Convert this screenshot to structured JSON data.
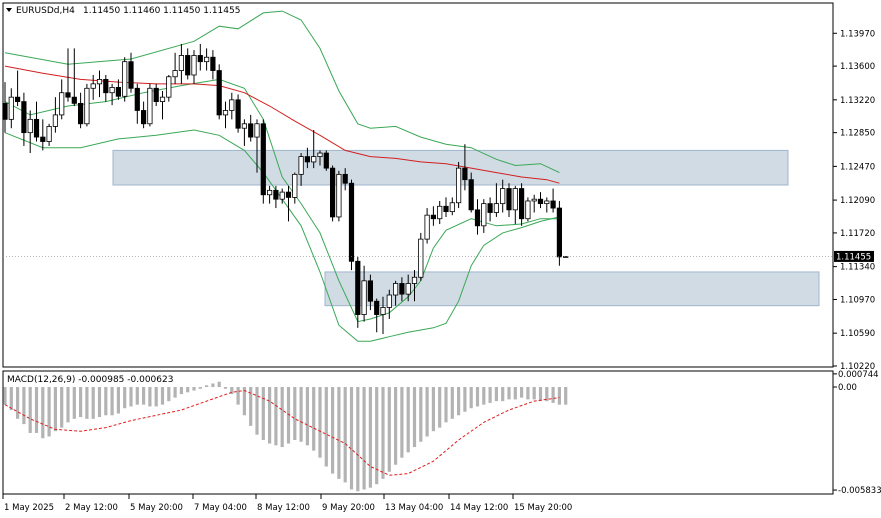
{
  "header": {
    "symbol": "EURUSDd,H4",
    "ohlc": "1.11450 1.11460 1.11450 1.11455"
  },
  "macd_header": {
    "label": "MACD(12,26,9) -0.000985 -0.000623"
  },
  "colors": {
    "bull_candle": "#ffffff",
    "bear_candle": "#000000",
    "bollinger": "#3aa856",
    "moving_average": "#d21f1f",
    "macd_histogram": "#b3b3b3",
    "macd_signal": "#e01e1e",
    "zone_fill": "#c9d5df",
    "zone_border": "#9fb6cc"
  },
  "chart_data": [
    {
      "type": "candlestick",
      "symbol": "EURUSDd",
      "timeframe": "H4",
      "ylim": [
        1.1022,
        1.143
      ],
      "y_ticks": [
        "1.13970",
        "1.13600",
        "1.13220",
        "1.12850",
        "1.12470",
        "1.12090",
        "1.11720",
        "1.11340",
        "1.10970",
        "1.10590",
        "1.10220"
      ],
      "current_price": "1.11455",
      "x_ticks": [
        "1 May 2025",
        "2 May 12:00",
        "5 May 20:00",
        "7 May 04:00",
        "8 May 12:00",
        "9 May 20:00",
        "13 May 04:00",
        "14 May 12:00",
        "15 May 20:00"
      ],
      "candles": [
        {
          "o": 1.1318,
          "h": 1.1342,
          "l": 1.1285,
          "c": 1.13
        },
        {
          "o": 1.13,
          "h": 1.1335,
          "l": 1.129,
          "c": 1.1325
        },
        {
          "o": 1.1325,
          "h": 1.1355,
          "l": 1.1315,
          "c": 1.132
        },
        {
          "o": 1.132,
          "h": 1.133,
          "l": 1.127,
          "c": 1.1285
        },
        {
          "o": 1.1285,
          "h": 1.131,
          "l": 1.1262,
          "c": 1.13
        },
        {
          "o": 1.13,
          "h": 1.132,
          "l": 1.1275,
          "c": 1.128
        },
        {
          "o": 1.128,
          "h": 1.13,
          "l": 1.1265,
          "c": 1.1275
        },
        {
          "o": 1.1275,
          "h": 1.1295,
          "l": 1.127,
          "c": 1.1292
        },
        {
          "o": 1.1292,
          "h": 1.1325,
          "l": 1.1285,
          "c": 1.1305
        },
        {
          "o": 1.1305,
          "h": 1.1345,
          "l": 1.13,
          "c": 1.133
        },
        {
          "o": 1.133,
          "h": 1.138,
          "l": 1.132,
          "c": 1.1325
        },
        {
          "o": 1.1325,
          "h": 1.138,
          "l": 1.1315,
          "c": 1.1318
        },
        {
          "o": 1.1318,
          "h": 1.133,
          "l": 1.129,
          "c": 1.1295
        },
        {
          "o": 1.1295,
          "h": 1.134,
          "l": 1.1292,
          "c": 1.1335
        },
        {
          "o": 1.1335,
          "h": 1.135,
          "l": 1.1322,
          "c": 1.134
        },
        {
          "o": 1.134,
          "h": 1.1355,
          "l": 1.1325,
          "c": 1.1345
        },
        {
          "o": 1.1345,
          "h": 1.135,
          "l": 1.132,
          "c": 1.133
        },
        {
          "o": 1.133,
          "h": 1.134,
          "l": 1.1316,
          "c": 1.1336
        },
        {
          "o": 1.1336,
          "h": 1.1345,
          "l": 1.1322,
          "c": 1.1326
        },
        {
          "o": 1.1326,
          "h": 1.137,
          "l": 1.132,
          "c": 1.1365
        },
        {
          "o": 1.1365,
          "h": 1.1375,
          "l": 1.133,
          "c": 1.1335
        },
        {
          "o": 1.1335,
          "h": 1.134,
          "l": 1.1295,
          "c": 1.131
        },
        {
          "o": 1.131,
          "h": 1.132,
          "l": 1.129,
          "c": 1.1295
        },
        {
          "o": 1.1295,
          "h": 1.134,
          "l": 1.1292,
          "c": 1.1335
        },
        {
          "o": 1.1335,
          "h": 1.134,
          "l": 1.1315,
          "c": 1.132
        },
        {
          "o": 1.132,
          "h": 1.1332,
          "l": 1.13,
          "c": 1.1325
        },
        {
          "o": 1.1325,
          "h": 1.135,
          "l": 1.132,
          "c": 1.1348
        },
        {
          "o": 1.1348,
          "h": 1.1375,
          "l": 1.134,
          "c": 1.1355
        },
        {
          "o": 1.1355,
          "h": 1.1385,
          "l": 1.134,
          "c": 1.1372
        },
        {
          "o": 1.1372,
          "h": 1.138,
          "l": 1.1345,
          "c": 1.135
        },
        {
          "o": 1.135,
          "h": 1.1378,
          "l": 1.134,
          "c": 1.1372
        },
        {
          "o": 1.1372,
          "h": 1.1385,
          "l": 1.1355,
          "c": 1.1365
        },
        {
          "o": 1.1365,
          "h": 1.138,
          "l": 1.1355,
          "c": 1.137
        },
        {
          "o": 1.137,
          "h": 1.1378,
          "l": 1.1345,
          "c": 1.1355
        },
        {
          "o": 1.1355,
          "h": 1.1362,
          "l": 1.13,
          "c": 1.1305
        },
        {
          "o": 1.1305,
          "h": 1.132,
          "l": 1.129,
          "c": 1.131
        },
        {
          "o": 1.131,
          "h": 1.133,
          "l": 1.13,
          "c": 1.1322
        },
        {
          "o": 1.1322,
          "h": 1.1328,
          "l": 1.1285,
          "c": 1.129
        },
        {
          "o": 1.129,
          "h": 1.13,
          "l": 1.127,
          "c": 1.1295
        },
        {
          "o": 1.1295,
          "h": 1.1305,
          "l": 1.1275,
          "c": 1.128
        },
        {
          "o": 1.128,
          "h": 1.13,
          "l": 1.124,
          "c": 1.1295
        },
        {
          "o": 1.1295,
          "h": 1.13,
          "l": 1.1205,
          "c": 1.1215
        },
        {
          "o": 1.1215,
          "h": 1.1225,
          "l": 1.1205,
          "c": 1.122
        },
        {
          "o": 1.122,
          "h": 1.1225,
          "l": 1.12,
          "c": 1.121
        },
        {
          "o": 1.121,
          "h": 1.1222,
          "l": 1.1205,
          "c": 1.1218
        },
        {
          "o": 1.1218,
          "h": 1.1225,
          "l": 1.1185,
          "c": 1.1212
        },
        {
          "o": 1.1212,
          "h": 1.124,
          "l": 1.1205,
          "c": 1.1238
        },
        {
          "o": 1.1238,
          "h": 1.1262,
          "l": 1.1225,
          "c": 1.1258
        },
        {
          "o": 1.1258,
          "h": 1.1268,
          "l": 1.1245,
          "c": 1.1252
        },
        {
          "o": 1.1252,
          "h": 1.1288,
          "l": 1.1245,
          "c": 1.1258
        },
        {
          "o": 1.1258,
          "h": 1.1265,
          "l": 1.1248,
          "c": 1.1262
        },
        {
          "o": 1.1262,
          "h": 1.1265,
          "l": 1.1242,
          "c": 1.1245
        },
        {
          "o": 1.1245,
          "h": 1.1248,
          "l": 1.1185,
          "c": 1.119
        },
        {
          "o": 1.119,
          "h": 1.1242,
          "l": 1.1185,
          "c": 1.1238
        },
        {
          "o": 1.1238,
          "h": 1.1245,
          "l": 1.122,
          "c": 1.1228
        },
        {
          "o": 1.1228,
          "h": 1.1232,
          "l": 1.113,
          "c": 1.114
        },
        {
          "o": 1.114,
          "h": 1.1145,
          "l": 1.1065,
          "c": 1.108
        },
        {
          "o": 1.108,
          "h": 1.1135,
          "l": 1.1072,
          "c": 1.1118
        },
        {
          "o": 1.1118,
          "h": 1.1125,
          "l": 1.1085,
          "c": 1.1095
        },
        {
          "o": 1.1095,
          "h": 1.1098,
          "l": 1.106,
          "c": 1.108
        },
        {
          "o": 1.108,
          "h": 1.11,
          "l": 1.1058,
          "c": 1.1088
        },
        {
          "o": 1.1088,
          "h": 1.1108,
          "l": 1.1075,
          "c": 1.1102
        },
        {
          "o": 1.1102,
          "h": 1.1118,
          "l": 1.109,
          "c": 1.1115
        },
        {
          "o": 1.1115,
          "h": 1.1122,
          "l": 1.1095,
          "c": 1.1103
        },
        {
          "o": 1.1103,
          "h": 1.1125,
          "l": 1.1095,
          "c": 1.1115
        },
        {
          "o": 1.1115,
          "h": 1.113,
          "l": 1.1095,
          "c": 1.1122
        },
        {
          "o": 1.1122,
          "h": 1.1172,
          "l": 1.1118,
          "c": 1.1165
        },
        {
          "o": 1.1165,
          "h": 1.12,
          "l": 1.116,
          "c": 1.1192
        },
        {
          "o": 1.1192,
          "h": 1.1202,
          "l": 1.118,
          "c": 1.1188
        },
        {
          "o": 1.1188,
          "h": 1.1208,
          "l": 1.1182,
          "c": 1.1202
        },
        {
          "o": 1.1202,
          "h": 1.1212,
          "l": 1.119,
          "c": 1.1196
        },
        {
          "o": 1.1196,
          "h": 1.1212,
          "l": 1.1192,
          "c": 1.1206
        },
        {
          "o": 1.1206,
          "h": 1.1252,
          "l": 1.12,
          "c": 1.1245
        },
        {
          "o": 1.1245,
          "h": 1.1272,
          "l": 1.122,
          "c": 1.1232
        },
        {
          "o": 1.1232,
          "h": 1.124,
          "l": 1.1195,
          "c": 1.1198
        },
        {
          "o": 1.1198,
          "h": 1.121,
          "l": 1.117,
          "c": 1.118
        },
        {
          "o": 1.118,
          "h": 1.121,
          "l": 1.1172,
          "c": 1.1205
        },
        {
          "o": 1.1205,
          "h": 1.1212,
          "l": 1.1185,
          "c": 1.1195
        },
        {
          "o": 1.1195,
          "h": 1.1228,
          "l": 1.119,
          "c": 1.1205
        },
        {
          "o": 1.1205,
          "h": 1.1232,
          "l": 1.1195,
          "c": 1.1222
        },
        {
          "o": 1.1222,
          "h": 1.1228,
          "l": 1.119,
          "c": 1.1198
        },
        {
          "o": 1.1198,
          "h": 1.1225,
          "l": 1.1182,
          "c": 1.1222
        },
        {
          "o": 1.1222,
          "h": 1.1228,
          "l": 1.118,
          "c": 1.1188
        },
        {
          "o": 1.1188,
          "h": 1.1212,
          "l": 1.1185,
          "c": 1.1208
        },
        {
          "o": 1.1208,
          "h": 1.1215,
          "l": 1.1195,
          "c": 1.121
        },
        {
          "o": 1.121,
          "h": 1.1218,
          "l": 1.12,
          "c": 1.1205
        },
        {
          "o": 1.1205,
          "h": 1.1212,
          "l": 1.1195,
          "c": 1.1208
        },
        {
          "o": 1.1208,
          "h": 1.1222,
          "l": 1.1195,
          "c": 1.12
        },
        {
          "o": 1.12,
          "h": 1.1208,
          "l": 1.1135,
          "c": 1.1145
        },
        {
          "o": 1.1145,
          "h": 1.1146,
          "l": 1.1145,
          "c": 1.11455
        }
      ],
      "bollinger_upper": [
        [
          0,
          1.1375
        ],
        [
          10,
          1.1362
        ],
        [
          20,
          1.1368
        ],
        [
          30,
          1.1388
        ],
        [
          34,
          1.1405
        ],
        [
          37,
          1.1402
        ],
        [
          41,
          1.142
        ],
        [
          44,
          1.1422
        ],
        [
          47,
          1.1412
        ],
        [
          50,
          1.138
        ],
        [
          53,
          1.1332
        ],
        [
          56,
          1.1295
        ],
        [
          58,
          1.129
        ],
        [
          62,
          1.1292
        ],
        [
          66,
          1.128
        ],
        [
          70,
          1.1272
        ],
        [
          74,
          1.1268
        ],
        [
          78,
          1.1255
        ],
        [
          81,
          1.1248
        ],
        [
          85,
          1.125
        ],
        [
          88,
          1.124
        ]
      ],
      "bollinger_lower": [
        [
          0,
          1.1285
        ],
        [
          6,
          1.1268
        ],
        [
          12,
          1.1268
        ],
        [
          18,
          1.1278
        ],
        [
          24,
          1.1282
        ],
        [
          30,
          1.1288
        ],
        [
          34,
          1.1282
        ],
        [
          38,
          1.1265
        ],
        [
          41,
          1.124
        ],
        [
          44,
          1.121
        ],
        [
          47,
          1.118
        ],
        [
          50,
          1.1128
        ],
        [
          53,
          1.1068
        ],
        [
          56,
          1.105
        ],
        [
          58,
          1.105
        ],
        [
          61,
          1.1055
        ],
        [
          64,
          1.106
        ],
        [
          68,
          1.1065
        ],
        [
          70,
          1.107
        ],
        [
          72,
          1.1095
        ],
        [
          74,
          1.1135
        ],
        [
          76,
          1.1158
        ],
        [
          79,
          1.1172
        ],
        [
          82,
          1.1178
        ],
        [
          85,
          1.1185
        ],
        [
          88,
          1.119
        ]
      ],
      "bollinger_middle": [
        [
          0,
          1.132
        ],
        [
          4,
          1.1305
        ],
        [
          10,
          1.1315
        ],
        [
          16,
          1.132
        ],
        [
          22,
          1.133
        ],
        [
          28,
          1.1338
        ],
        [
          34,
          1.1345
        ],
        [
          38,
          1.1335
        ],
        [
          41,
          1.13
        ],
        [
          44,
          1.1235
        ],
        [
          47,
          1.1205
        ],
        [
          50,
          1.1172
        ],
        [
          53,
          1.1118
        ],
        [
          56,
          1.1072
        ],
        [
          58,
          1.1075
        ],
        [
          61,
          1.1082
        ],
        [
          64,
          1.11
        ],
        [
          66,
          1.1118
        ],
        [
          68,
          1.1155
        ],
        [
          70,
          1.1175
        ],
        [
          74,
          1.1188
        ],
        [
          78,
          1.118
        ],
        [
          82,
          1.1182
        ],
        [
          85,
          1.1188
        ],
        [
          88,
          1.1188
        ]
      ],
      "moving_average": [
        [
          0,
          1.136
        ],
        [
          6,
          1.1352
        ],
        [
          12,
          1.1345
        ],
        [
          18,
          1.1342
        ],
        [
          24,
          1.134
        ],
        [
          30,
          1.134
        ],
        [
          34,
          1.1338
        ],
        [
          38,
          1.133
        ],
        [
          42,
          1.1315
        ],
        [
          46,
          1.1298
        ],
        [
          50,
          1.1282
        ],
        [
          54,
          1.1265
        ],
        [
          58,
          1.1258
        ],
        [
          62,
          1.1256
        ],
        [
          66,
          1.1252
        ],
        [
          70,
          1.125
        ],
        [
          74,
          1.1245
        ],
        [
          78,
          1.124
        ],
        [
          82,
          1.1235
        ],
        [
          86,
          1.1232
        ],
        [
          88,
          1.1228
        ]
      ],
      "zones": [
        {
          "from": 1.1226,
          "to": 1.1265
        },
        {
          "from": 1.109,
          "to": 1.1128
        }
      ]
    },
    {
      "type": "bar+line",
      "indicator": "MACD(12,26,9)",
      "macd_value": "-0.000985",
      "signal_value": "-0.000623",
      "ylim": [
        -0.006,
        0.00085
      ],
      "y_ticks": [
        "0.000744",
        "0.00",
        "-0.005833"
      ],
      "histogram": [
        -0.001,
        -0.0013,
        -0.0018,
        -0.0021,
        -0.0026,
        -0.0026,
        -0.0029,
        -0.0028,
        -0.0025,
        -0.0023,
        -0.002,
        -0.0018,
        -0.0017,
        -0.0018,
        -0.0018,
        -0.0017,
        -0.0016,
        -0.0016,
        -0.0015,
        -0.0012,
        -0.0011,
        -0.001,
        -0.001,
        -0.0011,
        -0.0011,
        -0.001,
        -0.0008,
        -0.0006,
        -0.0004,
        -0.0003,
        -0.0002,
        -0.0001,
        0.0001,
        0.0002,
        0.0003,
        -0.0001,
        -0.0004,
        -0.001,
        -0.0016,
        -0.0022,
        -0.0027,
        -0.003,
        -0.0032,
        -0.0033,
        -0.0034,
        -0.0032,
        -0.003,
        -0.0031,
        -0.0033,
        -0.0036,
        -0.004,
        -0.0045,
        -0.0049,
        -0.0052,
        -0.0054,
        -0.0058,
        -0.0059,
        -0.0058,
        -0.0057,
        -0.0055,
        -0.0052,
        -0.0048,
        -0.0044,
        -0.004,
        -0.0037,
        -0.0034,
        -0.0031,
        -0.0028,
        -0.0025,
        -0.0023,
        -0.002,
        -0.0018,
        -0.0016,
        -0.0014,
        -0.0012,
        -0.0011,
        -0.001,
        -0.0009,
        -0.0008,
        -0.0008,
        -0.0007,
        -0.0007,
        -0.0006,
        -0.0007,
        -0.0007,
        -0.0008,
        -0.0008,
        -0.0009,
        -0.001,
        -0.001
      ],
      "signal": [
        [
          0,
          -0.001
        ],
        [
          4,
          -0.0018
        ],
        [
          8,
          -0.0024
        ],
        [
          12,
          -0.0025
        ],
        [
          16,
          -0.0023
        ],
        [
          20,
          -0.0019
        ],
        [
          24,
          -0.0016
        ],
        [
          28,
          -0.0013
        ],
        [
          32,
          -0.0008
        ],
        [
          36,
          -0.0003
        ],
        [
          38,
          -0.0002
        ],
        [
          42,
          -0.0008
        ],
        [
          46,
          -0.0018
        ],
        [
          50,
          -0.0025
        ],
        [
          54,
          -0.0032
        ],
        [
          58,
          -0.0045
        ],
        [
          61,
          -0.005
        ],
        [
          64,
          -0.0049
        ],
        [
          68,
          -0.0042
        ],
        [
          72,
          -0.003
        ],
        [
          76,
          -0.002
        ],
        [
          80,
          -0.0013
        ],
        [
          84,
          -0.0008
        ],
        [
          88,
          -0.0006
        ]
      ]
    }
  ]
}
